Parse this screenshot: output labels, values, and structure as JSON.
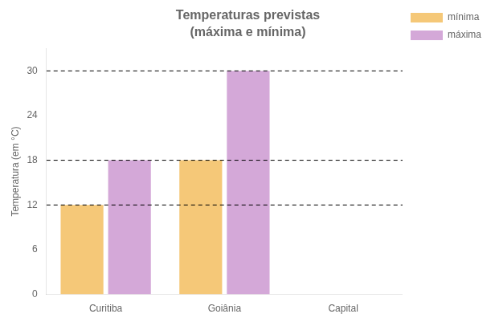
{
  "chart_data": {
    "type": "bar",
    "title": "Temperaturas previstas",
    "subtitle": "(máxima e mínima)",
    "categories": [
      "Curitiba",
      "Goiânia",
      "Capital"
    ],
    "series": [
      {
        "name": "mínima",
        "color": "#F5C878",
        "values": [
          12,
          18,
          null
        ]
      },
      {
        "name": "máxima",
        "color": "#D4A8D8",
        "values": [
          18,
          30,
          null
        ]
      }
    ],
    "y_label": "Temperatura (em °C)",
    "ylim": [
      0,
      33
    ],
    "yticks": [
      0,
      6,
      12,
      18,
      24,
      30
    ],
    "reference_lines": [
      12,
      18,
      30
    ],
    "grid": false,
    "legend": "right"
  }
}
